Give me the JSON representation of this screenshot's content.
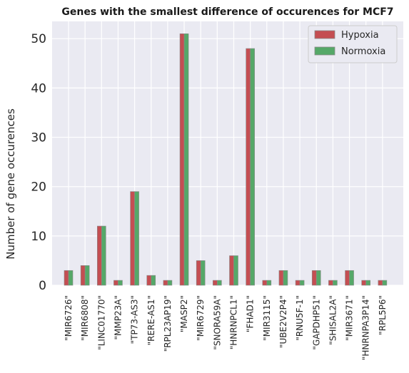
{
  "chart_data": {
    "type": "bar",
    "title": "Genes with the smallest difference of occurences for MCF7",
    "xlabel": "",
    "ylabel": "Number of gene occurences",
    "ylim": [
      0,
      53.5
    ],
    "yticks": [
      0,
      10,
      20,
      30,
      40,
      50
    ],
    "grid": true,
    "legend_position": "top-right",
    "categories": [
      "\"MIR6726\"",
      "\"MIR6808\"",
      "\"LINC01770\"",
      "\"MMP23A\"",
      "\"TP73-AS3\"",
      "\"RERE-AS1\"",
      "\"RPL23AP19\"",
      "\"MASP2\"",
      "\"MIR6729\"",
      "\"SNORA59A\"",
      "\"HNRNPCL1\"",
      "\"FHAD1\"",
      "\"MIR3115\"",
      "\"UBE2V2P4\"",
      "\"RNU5F-1\"",
      "\"GAPDHP51\"",
      "\"SHISAL2A\"",
      "\"MIR3671\"",
      "\"HNRNPA3P14\"",
      "\"RPL5P6\""
    ],
    "series": [
      {
        "name": "Hypoxia",
        "color": "#c44e52",
        "values": [
          3,
          4,
          12,
          1,
          19,
          2,
          1,
          51,
          5,
          1,
          6,
          48,
          1,
          3,
          1,
          3,
          1,
          3,
          1,
          1
        ]
      },
      {
        "name": "Normoxia",
        "color": "#55a868",
        "values": [
          3,
          4,
          12,
          1,
          19,
          2,
          1,
          51,
          5,
          1,
          6,
          48,
          1,
          3,
          1,
          3,
          1,
          3,
          1,
          1
        ]
      }
    ]
  }
}
